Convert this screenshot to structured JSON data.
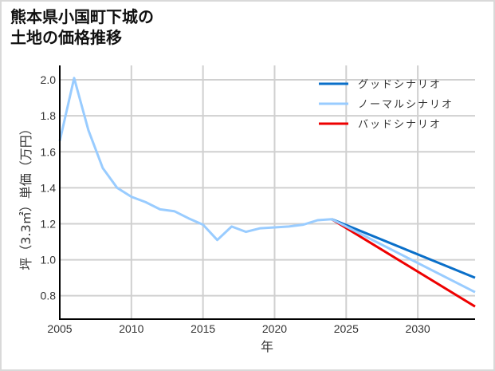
{
  "title_line1": "熊本県小国町下城の",
  "title_line2": "土地の価格推移",
  "chart_data": {
    "type": "line",
    "title": "熊本県小国町下城の土地の価格推移",
    "xlabel": "年",
    "ylabel": "坪（3.3㎡）単価（万円）",
    "xlim": [
      2005,
      2034
    ],
    "ylim": [
      0.67,
      2.08
    ],
    "xticks": [
      2005,
      2010,
      2015,
      2020,
      2025,
      2030
    ],
    "yticks": [
      0.8,
      1.0,
      1.2,
      1.4,
      1.6,
      1.8,
      2.0
    ],
    "ytick_labels": [
      "0.8",
      "1.0",
      "1.2",
      "1.4",
      "1.6",
      "1.8",
      "2.0"
    ],
    "grid": true,
    "legend_position": "upper right",
    "series": [
      {
        "name": "グッドシナリオ",
        "color": "#0a6fc9",
        "x": [
          2024,
          2034
        ],
        "values": [
          1.225,
          0.9
        ]
      },
      {
        "name": "ノーマルシナリオ",
        "color": "#99ccff",
        "x": [
          2005,
          2006,
          2007,
          2008,
          2009,
          2010,
          2011,
          2012,
          2013,
          2014,
          2015,
          2016,
          2017,
          2018,
          2019,
          2020,
          2021,
          2022,
          2023,
          2024,
          2034
        ],
        "values": [
          1.66,
          2.01,
          1.72,
          1.51,
          1.4,
          1.35,
          1.32,
          1.28,
          1.27,
          1.23,
          1.195,
          1.11,
          1.185,
          1.155,
          1.175,
          1.18,
          1.185,
          1.195,
          1.22,
          1.225,
          0.82
        ]
      },
      {
        "name": "バッドシナリオ",
        "color": "#ee0000",
        "x": [
          2024,
          2034
        ],
        "values": [
          1.225,
          0.74
        ]
      }
    ]
  }
}
